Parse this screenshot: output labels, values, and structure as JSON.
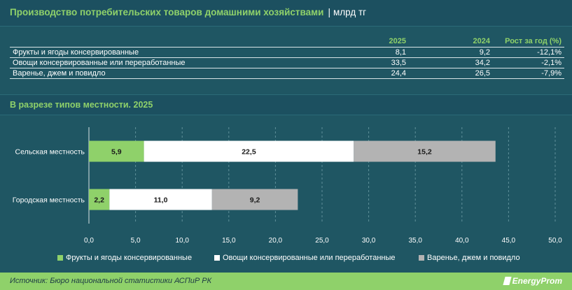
{
  "header": {
    "title": "Производство потребительских товаров домашними хозяйствами",
    "separator": "|",
    "unit": "млрд тг"
  },
  "table": {
    "columns": [
      "",
      "2025",
      "2024",
      "Рост за год (%)"
    ],
    "rows": [
      {
        "label": "Фрукты и ягоды консервированные",
        "v2025": "8,1",
        "v2024": "9,2",
        "growth": "-12,1%"
      },
      {
        "label": "Овощи консервированные или переработанные",
        "v2025": "33,5",
        "v2024": "34,2",
        "growth": "-2,1%"
      },
      {
        "label": "Варенье, джем и повидло",
        "v2025": "24,4",
        "v2024": "26,5",
        "growth": "-7,9%"
      }
    ]
  },
  "section": {
    "title": "В разрезе типов местности. 2025"
  },
  "colors": {
    "background": "#1f5663",
    "accent": "#8fd16a",
    "series_fruits": "#8fd16a",
    "series_vegetables": "#ffffff",
    "series_jam": "#b3b3b3"
  },
  "chart_data": {
    "type": "bar",
    "orientation": "horizontal",
    "stacked": true,
    "categories": [
      "Сельская местность",
      "Городская местность"
    ],
    "series": [
      {
        "name": "Фрукты и ягоды консервированные",
        "values": [
          5.9,
          2.2
        ],
        "labels": [
          "5,9",
          "2,2"
        ],
        "color": "#8fd16a",
        "label_color": "#1a1a1a"
      },
      {
        "name": "Овощи консервированные или переработанные",
        "values": [
          22.5,
          11.0
        ],
        "labels": [
          "22,5",
          "11,0"
        ],
        "color": "#ffffff",
        "label_color": "#1a1a1a"
      },
      {
        "name": "Варенье, джем и повидло",
        "values": [
          15.2,
          9.2
        ],
        "labels": [
          "15,2",
          "9,2"
        ],
        "color": "#b3b3b3",
        "label_color": "#1a1a1a"
      }
    ],
    "xlim": [
      0,
      50
    ],
    "x_ticks": [
      "0,0",
      "5,0",
      "10,0",
      "15,0",
      "20,0",
      "25,0",
      "30,0",
      "35,0",
      "40,0",
      "45,0",
      "50,0"
    ],
    "grid": true,
    "legend_position": "bottom"
  },
  "footer": {
    "source": "Источник: Бюро национальной статистики АСПиР РК",
    "logo_text": "EnergyProm"
  }
}
